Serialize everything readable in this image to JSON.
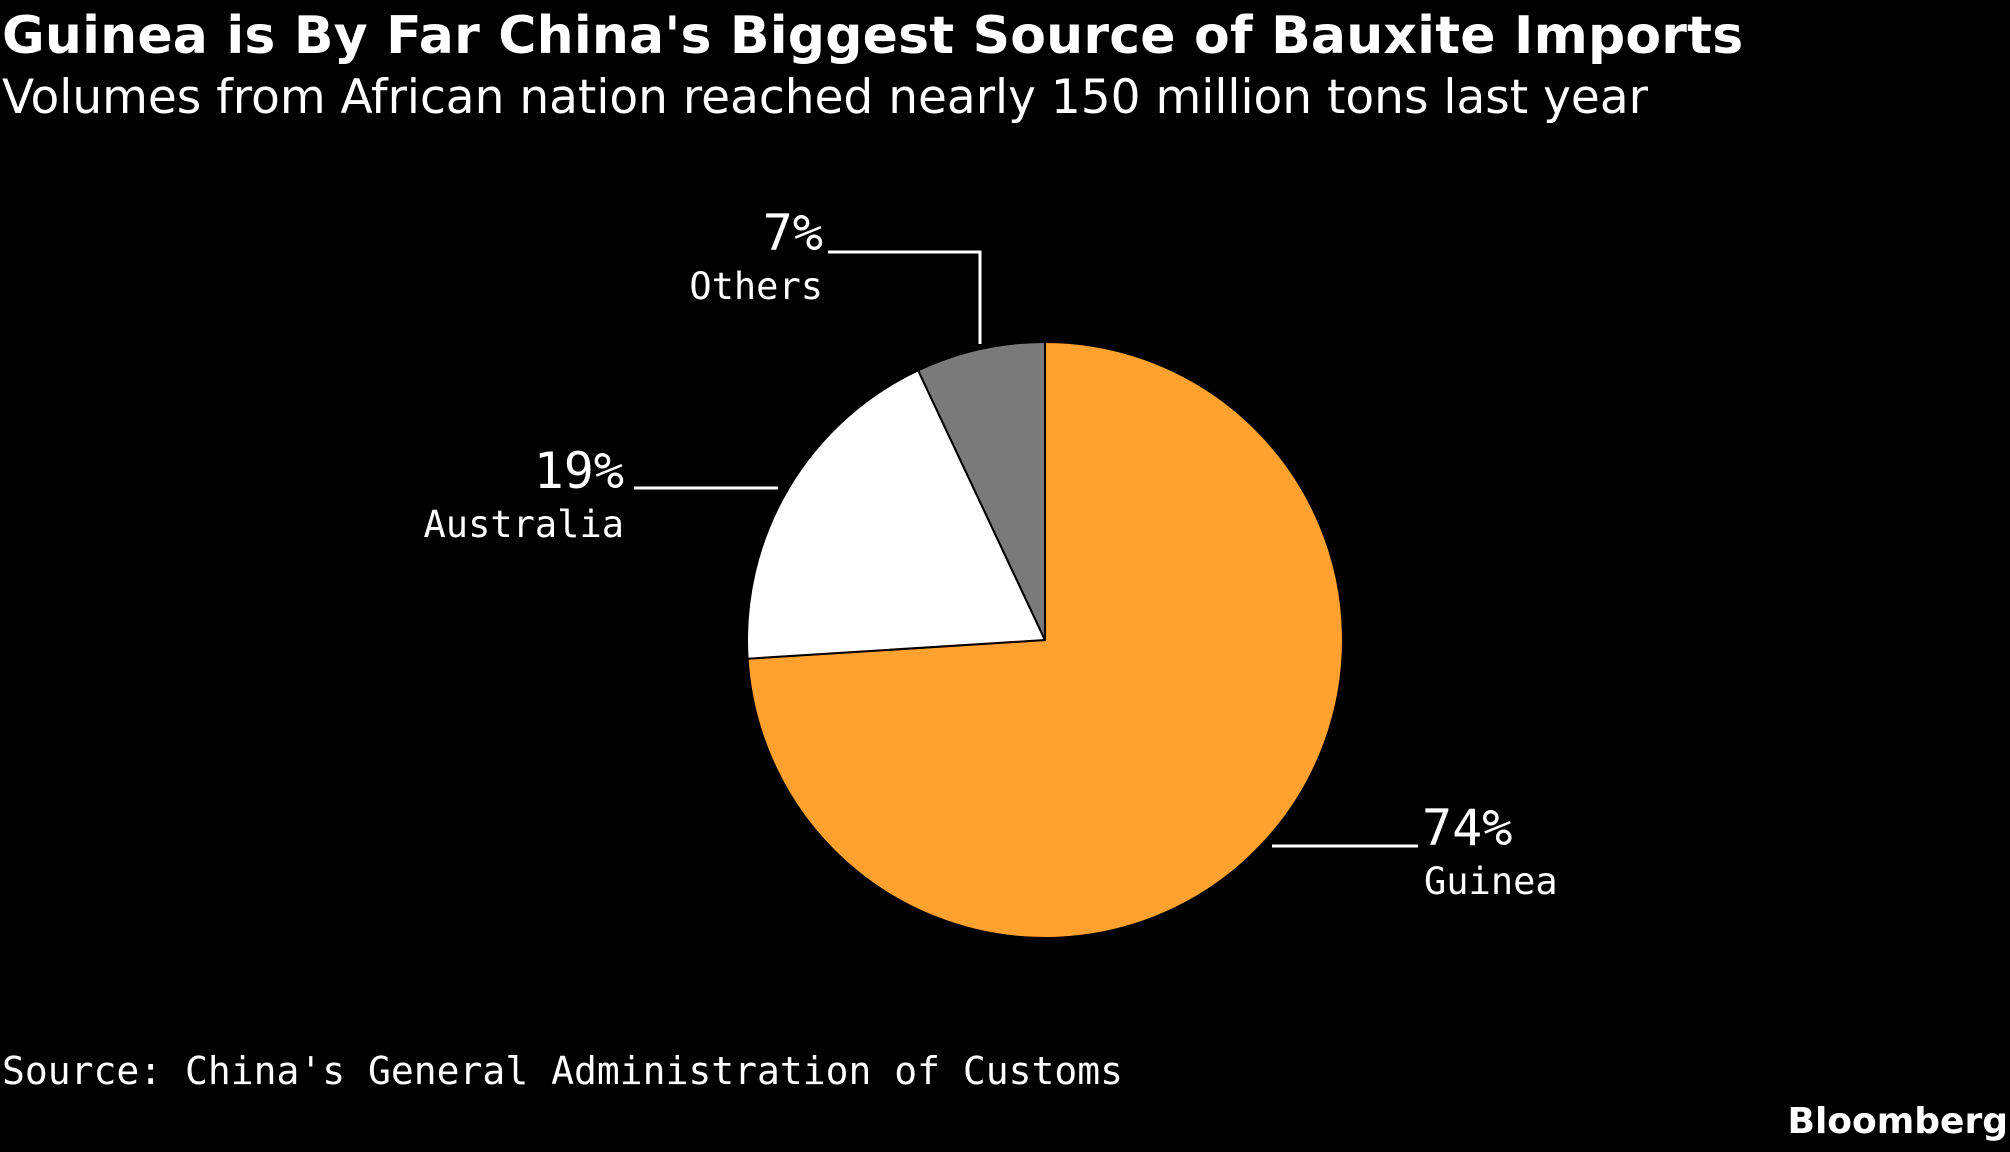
{
  "title": "Guinea is By Far China's Biggest Source of Bauxite Imports",
  "subtitle": "Volumes from African nation reached nearly 150 million tons last year",
  "source": "Source: China's General Administration of Customs",
  "brand": "Bloomberg",
  "colors": {
    "background": "#000000",
    "text": "#ffffff",
    "guinea": "#ffa12e",
    "australia": "#ffffff",
    "others": "#7a7a7a"
  },
  "chart_data": {
    "type": "pie",
    "start": "12 o'clock",
    "direction": "clockwise",
    "slices": [
      {
        "label": "Guinea",
        "value": 74,
        "value_label": "74%",
        "color": "#ffa12e"
      },
      {
        "label": "Australia",
        "value": 19,
        "value_label": "19%",
        "color": "#ffffff"
      },
      {
        "label": "Others",
        "value": 7,
        "value_label": "7%",
        "color": "#7a7a7a"
      }
    ]
  }
}
